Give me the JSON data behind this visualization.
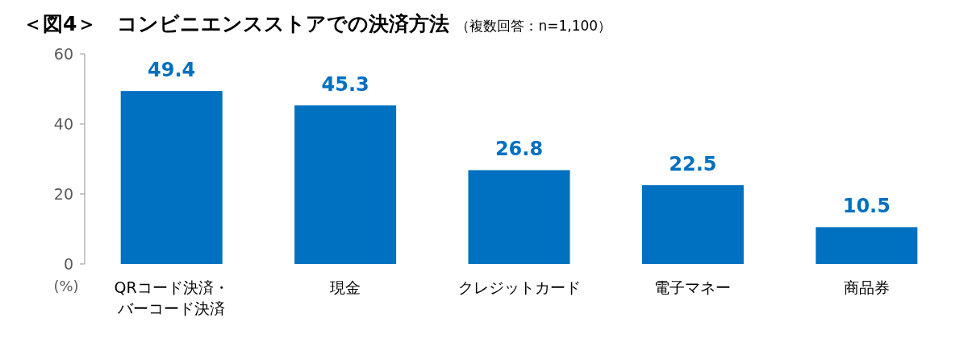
{
  "chart_data": {
    "type": "bar",
    "title": "＜図4＞　コンビニエンスストアでの決済方法",
    "subtitle": "（複数回答：n=1,100）",
    "ylabel": "(%)",
    "categories": [
      "QRコード決済・バーコード決済",
      "現金",
      "クレジットカード",
      "電子マネー",
      "商品券"
    ],
    "values": [
      49.4,
      45.3,
      26.8,
      22.5,
      10.5
    ],
    "color": "#0070c0",
    "ylim": [
      0,
      60
    ],
    "yticks": [
      0,
      20,
      40,
      60
    ],
    "data_labels": true,
    "grid": false
  }
}
